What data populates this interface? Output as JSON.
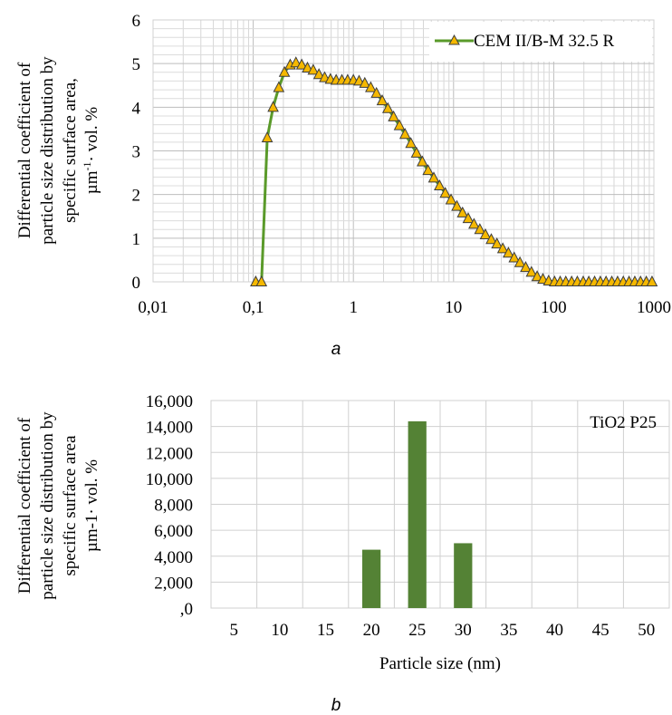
{
  "chart_data": [
    {
      "type": "line",
      "panel_label": "a",
      "ylabel_lines": [
        "Differential coefficient of",
        "particle size distribution by",
        "specific surface area,",
        "µm·vol. %"
      ],
      "ylabel_main": "µm",
      "ylabel_sup": "-1",
      "ylabel_tail": "· vol. %",
      "x_scale": "log",
      "xlim": [
        0.01,
        1000
      ],
      "ylim": [
        0,
        6
      ],
      "x_tick_labels": [
        "0,01",
        "0,1",
        "1",
        "10",
        "100",
        "1000"
      ],
      "y_tick_labels": [
        "0",
        "1",
        "2",
        "3",
        "4",
        "5",
        "6"
      ],
      "grid": true,
      "legend_position": "top-right",
      "series": [
        {
          "name": "CEM II/B-M 32.5 R",
          "line_color": "#5a9a2a",
          "marker_color": "#f5b800",
          "marker": "triangle",
          "x": [
            0.106,
            0.121,
            0.138,
            0.158,
            0.18,
            0.205,
            0.234,
            0.267,
            0.305,
            0.348,
            0.397,
            0.453,
            0.517,
            0.59,
            0.673,
            0.768,
            0.876,
            1.0,
            1.14,
            1.3,
            1.49,
            1.7,
            1.94,
            2.21,
            2.52,
            2.88,
            3.28,
            3.75,
            4.27,
            4.88,
            5.57,
            6.35,
            7.25,
            8.27,
            9.44,
            10.8,
            12.3,
            14.0,
            16.0,
            18.3,
            20.8,
            23.8,
            27.1,
            31.0,
            35.3,
            40.3,
            46.0,
            52.5,
            59.9,
            68.3,
            78.0,
            89.0,
            102,
            116,
            132,
            151,
            172,
            197,
            224,
            256,
            292,
            333,
            380,
            434,
            495,
            565,
            645,
            736,
            840,
            958
          ],
          "y": [
            0.0,
            0.0,
            3.3,
            4.0,
            4.45,
            4.8,
            4.97,
            5.02,
            4.97,
            4.9,
            4.85,
            4.75,
            4.68,
            4.64,
            4.62,
            4.62,
            4.62,
            4.62,
            4.6,
            4.55,
            4.45,
            4.32,
            4.15,
            3.97,
            3.78,
            3.58,
            3.38,
            3.17,
            2.95,
            2.75,
            2.55,
            2.38,
            2.2,
            2.03,
            1.88,
            1.73,
            1.58,
            1.45,
            1.32,
            1.2,
            1.08,
            0.97,
            0.87,
            0.76,
            0.66,
            0.55,
            0.44,
            0.33,
            0.22,
            0.12,
            0.06,
            0.02,
            0.0,
            0.0,
            0.0,
            0.0,
            0.0,
            0.0,
            0.0,
            0.0,
            0.0,
            0.0,
            0.0,
            0.0,
            0.0,
            0.0,
            0.0,
            0.0,
            0.0,
            0.0
          ]
        }
      ]
    },
    {
      "type": "bar",
      "panel_label": "b",
      "ylabel_lines": [
        "Differential coefficient of",
        "particle size distribution by",
        "specific surface area",
        "µm-1· vol. %"
      ],
      "xlabel": "Particle size (nm)",
      "categories": [
        "5",
        "10",
        "15",
        "20",
        "25",
        "30",
        "35",
        "40",
        "45",
        "50"
      ],
      "values": [
        0,
        0,
        0,
        4500,
        14400,
        5000,
        0,
        0,
        0,
        0
      ],
      "ylim": [
        0,
        16000
      ],
      "y_tick_labels": [
        ",0",
        "2,000",
        "4,000",
        "6,000",
        "8,000",
        "10,000",
        "12,000",
        "14,000",
        "16,000"
      ],
      "grid": true,
      "bar_color": "#548235",
      "annotation": "TiO2 P25",
      "annotation_position": "top-right"
    }
  ]
}
